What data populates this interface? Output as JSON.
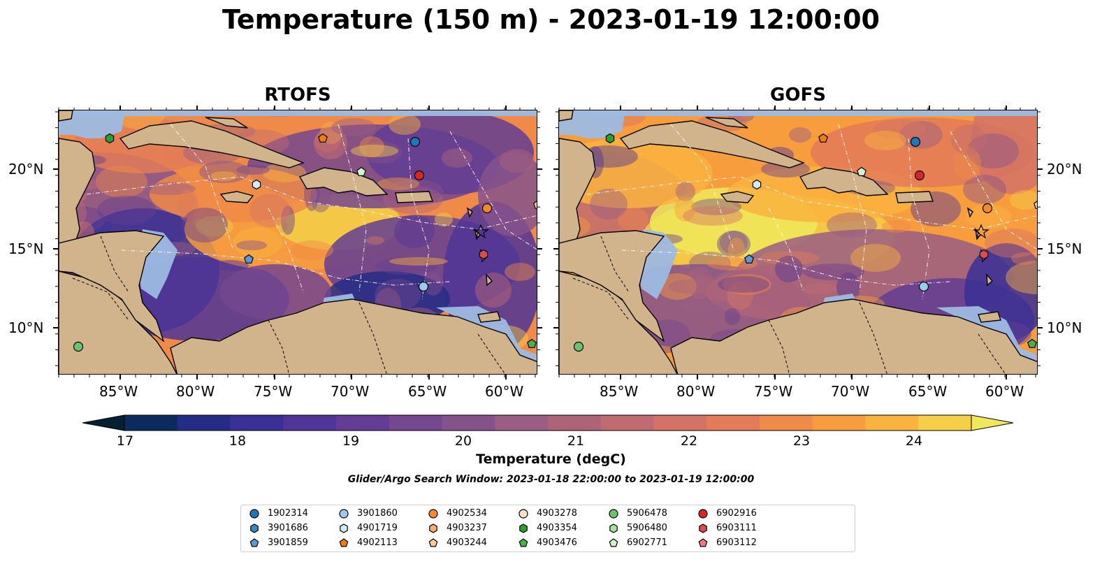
{
  "title": "Temperature (150 m) - 2023-01-19 12:00:00",
  "panels": [
    {
      "title": "RTOFS",
      "variant": "rtofs"
    },
    {
      "title": "GOFS",
      "variant": "gofs"
    }
  ],
  "axes": {
    "lon_ticks": [
      "85°W",
      "80°W",
      "75°W",
      "70°W",
      "65°W",
      "60°W"
    ],
    "lat_ticks": [
      "20°N",
      "15°N",
      "10°N"
    ]
  },
  "colorbar": {
    "label": "Temperature (degC)",
    "min": 17,
    "max": 24.5,
    "step": 0.5,
    "ticks": [
      "17",
      "18",
      "19",
      "20",
      "21",
      "22",
      "23",
      "24"
    ],
    "colors": [
      "#062033",
      "#0d2a5c",
      "#252c86",
      "#3a2f95",
      "#4f3596",
      "#633d93",
      "#74478f",
      "#86528c",
      "#9a5d84",
      "#ad6479",
      "#c06b70",
      "#d47365",
      "#e37b58",
      "#f08a48",
      "#f79d3e",
      "#fab33e",
      "#f5cf48",
      "#f0e85a"
    ]
  },
  "subtitle": "Glider/Argo Search Window: 2023-01-18 22:00:00 to 2023-01-19 12:00:00",
  "legend": [
    {
      "label": "1902314",
      "marker": "circle",
      "color": "#1f77b4"
    },
    {
      "label": "3901686",
      "marker": "hexagon",
      "color": "#3a8ac4"
    },
    {
      "label": "3901859",
      "marker": "pentagon",
      "color": "#5b9ad4"
    },
    {
      "label": "3901860",
      "marker": "circle",
      "color": "#9ccae8"
    },
    {
      "label": "4901719",
      "marker": "hexagon",
      "color": "#d5ebf8"
    },
    {
      "label": "4902113",
      "marker": "pentagon",
      "color": "#f07d12"
    },
    {
      "label": "4902534",
      "marker": "circle",
      "color": "#f58a2a"
    },
    {
      "label": "4903237",
      "marker": "hexagon",
      "color": "#f9ad6a"
    },
    {
      "label": "4903244",
      "marker": "pentagon",
      "color": "#fcc99a"
    },
    {
      "label": "4903278",
      "marker": "circle",
      "color": "#fde0c8"
    },
    {
      "label": "4903354",
      "marker": "hexagon",
      "color": "#2ca02c"
    },
    {
      "label": "4903476",
      "marker": "pentagon",
      "color": "#4ab04a"
    },
    {
      "label": "5906478",
      "marker": "circle",
      "color": "#6cc36c"
    },
    {
      "label": "5906480",
      "marker": "hexagon",
      "color": "#a6e2a0"
    },
    {
      "label": "6902771",
      "marker": "pentagon",
      "color": "#d2f4cc"
    },
    {
      "label": "6902916",
      "marker": "circle",
      "color": "#d62728"
    },
    {
      "label": "6903111",
      "marker": "hexagon",
      "color": "#e04a4a"
    },
    {
      "label": "6903112",
      "marker": "pentagon",
      "color": "#f07a7a"
    }
  ]
}
